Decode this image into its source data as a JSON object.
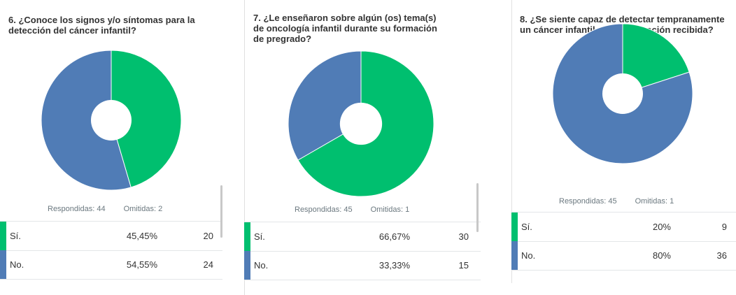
{
  "colors": {
    "yes": "#00bf6f",
    "no": "#507cb6"
  },
  "chart_data": [
    {
      "type": "pie",
      "title": "6. ¿Conoce los signos y/o síntomas para la detección del cáncer infantil?",
      "answered": "Respondidas: 44",
      "skipped": "Omitidas: 2",
      "categories": [
        "Sí.",
        "No."
      ],
      "percent_labels": [
        "45,45%",
        "54,55%"
      ],
      "values": [
        20,
        24
      ]
    },
    {
      "type": "pie",
      "title": "7. ¿Le enseñaron sobre algún (os) tema(s) de oncología infantil durante su formación de pregrado?",
      "answered": "Respondidas: 45",
      "skipped": "Omitidas: 1",
      "categories": [
        "Sí.",
        "No."
      ],
      "percent_labels": [
        "66,67%",
        "33,33%"
      ],
      "values": [
        30,
        15
      ]
    },
    {
      "type": "pie",
      "title": "8. ¿Se siente capaz de detectar tempranamente un cáncer infantil con la formación recibida?",
      "answered": "Respondidas: 45",
      "skipped": "Omitidas: 1",
      "categories": [
        "Sí.",
        "No."
      ],
      "percent_labels": [
        "20%",
        "80%"
      ],
      "values": [
        9,
        36
      ]
    }
  ]
}
